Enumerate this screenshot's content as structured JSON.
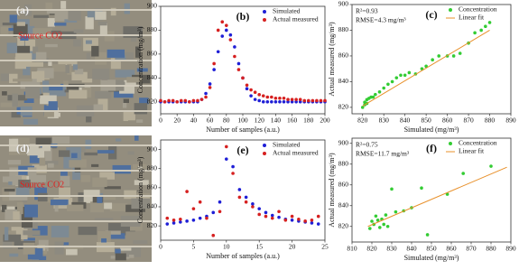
{
  "images": [
    {
      "label": "(a)",
      "annotation": "Source CO2"
    },
    {
      "label": "(d)",
      "annotation": "Source CO2"
    }
  ],
  "chart_data": [
    {
      "type": "scatter",
      "title": "(b)",
      "xlabel": "Number of samples (a.u.)",
      "ylabel": "Concentration (mg/m³)",
      "xlim": [
        0,
        200
      ],
      "xticks": [
        0,
        20,
        40,
        60,
        80,
        100,
        120,
        140,
        160,
        180,
        200
      ],
      "ylim": [
        810,
        900
      ],
      "yticks": [
        820,
        840,
        860,
        880,
        900
      ],
      "legend": "upper right",
      "series": [
        {
          "name": "Simulated",
          "color": "#1f1fd6",
          "mode": "markers",
          "x": [
            0,
            5,
            10,
            15,
            20,
            25,
            30,
            35,
            40,
            45,
            50,
            55,
            60,
            65,
            70,
            75,
            80,
            85,
            90,
            95,
            100,
            105,
            110,
            115,
            120,
            125,
            130,
            135,
            140,
            145,
            150,
            155,
            160,
            165,
            170,
            175,
            180,
            185,
            190,
            195,
            200
          ],
          "values": [
            820,
            820,
            820,
            820,
            820,
            820,
            820,
            820,
            820,
            820,
            822,
            827,
            835,
            847,
            862,
            875,
            880,
            876,
            866,
            852,
            840,
            831,
            825,
            822,
            821,
            820,
            820,
            820,
            820,
            820,
            820,
            820,
            820,
            820,
            820,
            820,
            820,
            820,
            820,
            820,
            820
          ]
        },
        {
          "name": "Actual measured",
          "color": "#d62020",
          "mode": "markers",
          "x": [
            0,
            5,
            10,
            15,
            20,
            25,
            30,
            35,
            40,
            45,
            50,
            55,
            60,
            65,
            70,
            75,
            80,
            85,
            90,
            95,
            100,
            105,
            110,
            115,
            120,
            125,
            130,
            135,
            140,
            145,
            150,
            155,
            160,
            165,
            170,
            175,
            180,
            185,
            190,
            195,
            200
          ],
          "values": [
            821,
            820,
            821,
            821,
            820,
            821,
            821,
            820,
            821,
            821,
            822,
            824,
            832,
            852,
            880,
            887,
            884,
            872,
            858,
            847,
            840,
            834,
            830,
            828,
            826,
            825,
            824,
            824,
            823,
            823,
            823,
            822,
            822,
            822,
            822,
            821,
            821,
            821,
            821,
            821,
            821
          ]
        }
      ]
    },
    {
      "type": "scatter",
      "title": "(c)",
      "xlabel": "Simulated (mg/m³)",
      "ylabel": "Actual measured (mg/m³)",
      "annotations": [
        "R²=0.93",
        "RMSE=4.3 mg/m³"
      ],
      "xlim": [
        815,
        890
      ],
      "xticks": [
        820,
        830,
        840,
        850,
        860,
        870,
        880,
        890
      ],
      "ylim": [
        815,
        900
      ],
      "yticks": [
        820,
        840,
        860,
        880,
        900
      ],
      "legend": "upper right",
      "series": [
        {
          "name": "Concentration",
          "color": "#33cc33",
          "mode": "markers",
          "x": [
            820,
            821,
            821,
            822,
            822,
            823,
            824,
            825,
            826,
            828,
            830,
            832,
            834,
            836,
            838,
            840,
            842,
            845,
            848,
            850,
            853,
            856,
            860,
            863,
            866,
            870,
            873,
            876,
            878,
            880
          ],
          "values": [
            820,
            822,
            824,
            823,
            826,
            827,
            828,
            828,
            830,
            832,
            835,
            838,
            840,
            843,
            845,
            845,
            847,
            846,
            850,
            852,
            857,
            860,
            860,
            860,
            862,
            870,
            878,
            880,
            883,
            886
          ]
        },
        {
          "name": "Linear fit",
          "color": "#e8902a",
          "mode": "line",
          "x": [
            820,
            880
          ],
          "values": [
            821,
            880
          ]
        }
      ]
    },
    {
      "type": "scatter",
      "title": "(e)",
      "xlabel": "Number of samples (a.u.)",
      "ylabel": "Concentration (mg/m³)",
      "xlim": [
        0,
        25
      ],
      "xticks": [
        0,
        5,
        10,
        15,
        20,
        25
      ],
      "ylim": [
        805,
        910
      ],
      "yticks": [
        820,
        840,
        860,
        880,
        900
      ],
      "legend": "upper right",
      "series": [
        {
          "name": "Simulated",
          "color": "#1f1fd6",
          "mode": "markers",
          "x": [
            1,
            2,
            3,
            4,
            5,
            6,
            7,
            8,
            9,
            10,
            11,
            12,
            13,
            14,
            15,
            16,
            17,
            18,
            19,
            20,
            21,
            22,
            23,
            24
          ],
          "values": [
            822,
            823,
            824,
            825,
            826,
            828,
            830,
            834,
            845,
            890,
            882,
            858,
            850,
            843,
            838,
            834,
            831,
            829,
            827,
            826,
            825,
            824,
            823,
            822
          ]
        },
        {
          "name": "Actual measured",
          "color": "#d62020",
          "mode": "markers",
          "x": [
            1,
            2,
            3,
            4,
            5,
            6,
            7,
            8,
            9,
            10,
            11,
            12,
            13,
            14,
            15,
            16,
            17,
            18,
            19,
            20,
            21,
            22,
            23,
            24
          ],
          "values": [
            828,
            826,
            827,
            856,
            838,
            845,
            828,
            810,
            835,
            903,
            875,
            850,
            845,
            840,
            832,
            830,
            828,
            835,
            826,
            830,
            827,
            825,
            826,
            830
          ]
        }
      ]
    },
    {
      "type": "scatter",
      "title": "(f)",
      "xlabel": "Simulated (mg/m³)",
      "ylabel": "Actual measured (mg/m³)",
      "annotations": [
        "R²=0.75",
        "RMSE=11.7 mg/m³"
      ],
      "xlim": [
        810,
        890
      ],
      "xticks": [
        810,
        820,
        830,
        840,
        850,
        860,
        870,
        880,
        890
      ],
      "ylim": [
        805,
        905
      ],
      "yticks": [
        820,
        840,
        860,
        880,
        900
      ],
      "legend": "upper right",
      "series": [
        {
          "name": "Concentration",
          "color": "#33cc33",
          "mode": "markers",
          "x": [
            819,
            820,
            821,
            822,
            823,
            824,
            825,
            826,
            827,
            828,
            830,
            832,
            836,
            840,
            845,
            848,
            858,
            866,
            880
          ],
          "values": [
            818,
            825,
            822,
            830,
            826,
            819,
            827,
            822,
            831,
            820,
            856,
            834,
            835,
            838,
            857,
            812,
            851,
            871,
            878
          ]
        },
        {
          "name": "Linear fit",
          "color": "#e8902a",
          "mode": "line",
          "x": [
            818,
            888
          ],
          "values": [
            820,
            877
          ]
        }
      ]
    }
  ]
}
